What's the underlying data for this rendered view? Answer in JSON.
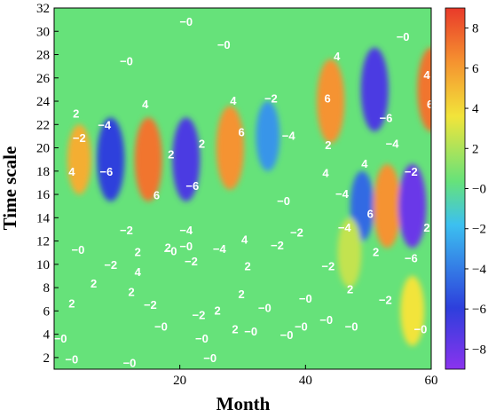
{
  "chart_data": {
    "type": "heatmap",
    "title": "",
    "xlabel": "Month",
    "ylabel": "Time scale",
    "xlim": [
      0,
      60
    ],
    "ylim": [
      1,
      32
    ],
    "x_ticks": [
      "20",
      "40",
      "60"
    ],
    "y_ticks": [
      "2",
      "4",
      "6",
      "8",
      "10",
      "12",
      "14",
      "16",
      "18",
      "20",
      "22",
      "24",
      "26",
      "28",
      "30",
      "32"
    ],
    "colorbar": {
      "range": [
        -9,
        9
      ],
      "ticks": [
        "8",
        "6",
        "4",
        "2",
        "−0",
        "−2",
        "−4",
        "−6",
        "−8"
      ],
      "colors": [
        "#8a33ee",
        "#2d3fdc",
        "#3cc0f0",
        "#66e27a",
        "#f2e43a",
        "#f59330",
        "#e93a2a"
      ]
    },
    "grid": false,
    "cells": [
      {
        "x": 4,
        "y": 19,
        "value": 5
      },
      {
        "x": 9,
        "y": 19,
        "value": -6
      },
      {
        "x": 15,
        "y": 19,
        "value": 7
      },
      {
        "x": 21,
        "y": 19,
        "value": -7
      },
      {
        "x": 28,
        "y": 20,
        "value": 6
      },
      {
        "x": 34,
        "y": 21,
        "value": -4
      },
      {
        "x": 44,
        "y": 24,
        "value": 6
      },
      {
        "x": 49,
        "y": 15,
        "value": -5
      },
      {
        "x": 51,
        "y": 25,
        "value": -7
      },
      {
        "x": 53,
        "y": 15,
        "value": 6
      },
      {
        "x": 57,
        "y": 15,
        "value": -8
      },
      {
        "x": 60,
        "y": 25,
        "value": 7
      },
      {
        "x": 47,
        "y": 11,
        "value": 2
      },
      {
        "x": 57,
        "y": 6,
        "value": 3
      }
    ],
    "contour_labels": [
      {
        "text": "−0",
        "x": 21,
        "y": 30.8
      },
      {
        "text": "−0",
        "x": 27,
        "y": 28.8
      },
      {
        "text": "−0",
        "x": 11.5,
        "y": 27.4
      },
      {
        "text": "−0",
        "x": 55.5,
        "y": 29.5
      },
      {
        "text": "4",
        "x": 45,
        "y": 27.8
      },
      {
        "text": "4",
        "x": 59.3,
        "y": 26.2
      },
      {
        "text": "2",
        "x": 3.5,
        "y": 22.9
      },
      {
        "text": "4",
        "x": 14.5,
        "y": 23.7
      },
      {
        "text": "4",
        "x": 28.5,
        "y": 24.0
      },
      {
        "text": "−2",
        "x": 34.5,
        "y": 24.2
      },
      {
        "text": "6",
        "x": 43.5,
        "y": 24.2
      },
      {
        "text": "6",
        "x": 59.8,
        "y": 23.7
      },
      {
        "text": "−4",
        "x": 8,
        "y": 21.9
      },
      {
        "text": "6",
        "x": 29.8,
        "y": 21.3
      },
      {
        "text": "−4",
        "x": 37.3,
        "y": 21.0
      },
      {
        "text": "−6",
        "x": 52.8,
        "y": 22.5
      },
      {
        "text": "−4",
        "x": 53.8,
        "y": 20.3
      },
      {
        "text": "−2",
        "x": 4,
        "y": 20.8
      },
      {
        "text": "2",
        "x": 18.6,
        "y": 19.4
      },
      {
        "text": "2",
        "x": 23.5,
        "y": 20.3
      },
      {
        "text": "2",
        "x": 43.6,
        "y": 20.2
      },
      {
        "text": "4",
        "x": 2.8,
        "y": 17.9
      },
      {
        "text": "−6",
        "x": 8.3,
        "y": 17.9
      },
      {
        "text": "−6",
        "x": 22.0,
        "y": 16.7
      },
      {
        "text": "4",
        "x": 49.4,
        "y": 18.6
      },
      {
        "text": "−2",
        "x": 56.8,
        "y": 17.9
      },
      {
        "text": "6",
        "x": 16.3,
        "y": 15.9
      },
      {
        "text": "−0",
        "x": 36.5,
        "y": 15.4
      },
      {
        "text": "4",
        "x": 43.2,
        "y": 17.8
      },
      {
        "text": "−4",
        "x": 45.8,
        "y": 16.0
      },
      {
        "text": "6",
        "x": 50.3,
        "y": 14.3
      },
      {
        "text": "−2",
        "x": 11.5,
        "y": 12.9
      },
      {
        "text": "−4",
        "x": 21.0,
        "y": 12.9
      },
      {
        "text": "−4",
        "x": 46.2,
        "y": 13.1
      },
      {
        "text": "−2",
        "x": 38.6,
        "y": 12.7
      },
      {
        "text": "2",
        "x": 59.3,
        "y": 13.1
      },
      {
        "text": "−0",
        "x": 3.8,
        "y": 11.2
      },
      {
        "text": "−0",
        "x": 21.0,
        "y": 11.5
      },
      {
        "text": "2",
        "x": 13.3,
        "y": 11.0
      },
      {
        "text": "2",
        "x": 18.1,
        "y": 11.4
      },
      {
        "text": "−0",
        "x": 18.5,
        "y": 11.1
      },
      {
        "text": "−4",
        "x": 26.3,
        "y": 11.3
      },
      {
        "text": "4",
        "x": 30.3,
        "y": 12.1
      },
      {
        "text": "−2",
        "x": 35.5,
        "y": 11.6
      },
      {
        "text": "2",
        "x": 51.2,
        "y": 11.0
      },
      {
        "text": "−6",
        "x": 56.8,
        "y": 10.5
      },
      {
        "text": "−2",
        "x": 9.0,
        "y": 9.9
      },
      {
        "text": "4",
        "x": 13.3,
        "y": 9.3
      },
      {
        "text": "−2",
        "x": 21.8,
        "y": 10.2
      },
      {
        "text": "2",
        "x": 30.8,
        "y": 9.8
      },
      {
        "text": "−2",
        "x": 43.6,
        "y": 9.8
      },
      {
        "text": "2",
        "x": 6.3,
        "y": 8.3
      },
      {
        "text": "2",
        "x": 12.3,
        "y": 7.6
      },
      {
        "text": "2",
        "x": 29.8,
        "y": 7.4
      },
      {
        "text": "−0",
        "x": 40.0,
        "y": 7.0
      },
      {
        "text": "2",
        "x": 47.1,
        "y": 7.8
      },
      {
        "text": "−2",
        "x": 52.7,
        "y": 6.9
      },
      {
        "text": "2",
        "x": 2.8,
        "y": 6.6
      },
      {
        "text": "−2",
        "x": 15.3,
        "y": 6.5
      },
      {
        "text": "−0",
        "x": 33.5,
        "y": 6.2
      },
      {
        "text": "−2",
        "x": 23.0,
        "y": 5.6
      },
      {
        "text": "2",
        "x": 26.0,
        "y": 6.0
      },
      {
        "text": "−0",
        "x": 17.0,
        "y": 4.6
      },
      {
        "text": "−0",
        "x": 31.3,
        "y": 4.2
      },
      {
        "text": "2",
        "x": 28.8,
        "y": 4.4
      },
      {
        "text": "−0",
        "x": 39.3,
        "y": 4.6
      },
      {
        "text": "−0",
        "x": 43.3,
        "y": 5.2
      },
      {
        "text": "−0",
        "x": 47.3,
        "y": 4.6
      },
      {
        "text": "−0",
        "x": 58.3,
        "y": 4.4
      },
      {
        "text": "−0",
        "x": 1.0,
        "y": 3.6
      },
      {
        "text": "−0",
        "x": 23.5,
        "y": 3.6
      },
      {
        "text": "−0",
        "x": 37.0,
        "y": 3.9
      },
      {
        "text": "−0",
        "x": 2.8,
        "y": 1.8
      },
      {
        "text": "−0",
        "x": 12.0,
        "y": 1.5
      },
      {
        "text": "−0",
        "x": 24.8,
        "y": 1.9
      }
    ]
  }
}
